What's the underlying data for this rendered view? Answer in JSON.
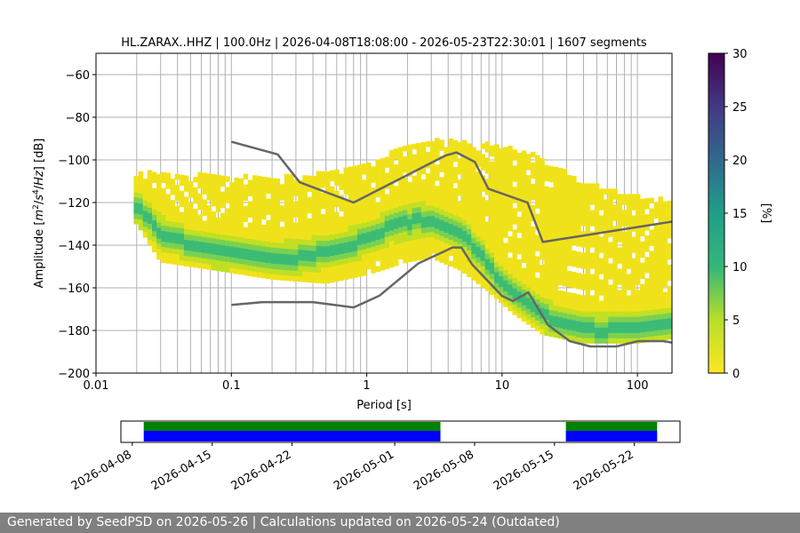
{
  "colors": {
    "psd_low": "#f0e21a",
    "reference_curves": "#666666",
    "data_bar": "#0000ff",
    "gap_bar": "#008000"
  },
  "chart_data": [
    {
      "type": "heatmap",
      "title": "HL.ZARAX..HHZ | 100.0Hz | 2026-04-08T18:08:00 - 2026-05-23T22:30:01 | 1607 segments",
      "xlabel": "Period [s]",
      "ylabel_parts": [
        "Amplitude [",
        "m",
        "2",
        "/",
        "s",
        "4",
        "/",
        "Hz",
        "] [dB]"
      ],
      "x_scale": "log",
      "xlim": [
        0.01,
        180
      ],
      "ylim": [
        -200,
        -50
      ],
      "x_ticks": [
        0.01,
        0.1,
        1,
        10,
        100
      ],
      "x_tick_labels": [
        "0.01",
        "0.1",
        "1",
        "10",
        "100"
      ],
      "y_ticks": [
        -200,
        -180,
        -160,
        -140,
        -120,
        -100,
        -80,
        -60
      ],
      "y_tick_labels": [
        "−200",
        "−180",
        "−160",
        "−140",
        "−120",
        "−100",
        "−80",
        "−60"
      ],
      "grid": true,
      "colorbar": {
        "label": "[%]",
        "range": [
          0,
          30
        ],
        "ticks": [
          0,
          5,
          10,
          15,
          20,
          25,
          30
        ],
        "tick_labels": [
          "0",
          "5",
          "10",
          "15",
          "20",
          "25",
          "30"
        ],
        "colormap": "viridis"
      },
      "psd_mode_curve": {
        "period": [
          0.02,
          0.03,
          0.05,
          0.08,
          0.15,
          0.3,
          0.6,
          1.0,
          1.5,
          2.5,
          3.5,
          5.0,
          7.0,
          10,
          15,
          25,
          50,
          100,
          180
        ],
        "db": [
          -122,
          -134,
          -140,
          -143,
          -145,
          -146,
          -142,
          -137,
          -131,
          -128,
          -130,
          -134,
          -145,
          -158,
          -167,
          -176,
          -180,
          -179,
          -176
        ]
      },
      "psd_upper_envelope": {
        "period": [
          0.02,
          0.03,
          0.08,
          0.2,
          0.5,
          1.0,
          2.0,
          3.0,
          5.0,
          8.0,
          12,
          20,
          40,
          100,
          180
        ],
        "db": [
          -106,
          -108,
          -108,
          -110,
          -106,
          -102,
          -95,
          -92,
          -92,
          -94,
          -96,
          -100,
          -112,
          -118,
          -120
        ]
      },
      "psd_lower_envelope": {
        "period": [
          0.02,
          0.03,
          0.08,
          0.2,
          0.5,
          1.0,
          2.0,
          3.0,
          5.0,
          8.0,
          12,
          20,
          40,
          100,
          180
        ],
        "db": [
          -130,
          -148,
          -152,
          -156,
          -158,
          -154,
          -148,
          -146,
          -152,
          -162,
          -172,
          -182,
          -186,
          -186,
          -184
        ]
      },
      "upper_noise_model": {
        "name": "",
        "period": [
          0.1,
          0.22,
          0.32,
          0.8,
          3.8,
          4.6,
          6.3,
          7.9,
          15.4,
          20,
          354.8
        ],
        "db": [
          -91.5,
          -97.4,
          -110.5,
          -120.0,
          -98.0,
          -96.5,
          -101.0,
          -113.5,
          -120.0,
          -138.5,
          -126.0
        ]
      },
      "lower_noise_model": {
        "name": "",
        "period": [
          0.1,
          0.17,
          0.4,
          0.8,
          1.24,
          2.4,
          4.3,
          5.0,
          6.0,
          10.0,
          12.0,
          15.6,
          21.9,
          31.6,
          45.0,
          70.0,
          101.0,
          154.0,
          180
        ],
        "db": [
          -168.0,
          -166.7,
          -166.7,
          -169.2,
          -163.7,
          -148.6,
          -141.1,
          -141.1,
          -149.0,
          -163.8,
          -166.2,
          -162.1,
          -177.5,
          -185.0,
          -187.5,
          -187.5,
          -185.0,
          -185.0,
          -185.7
        ]
      }
    },
    {
      "type": "bar",
      "title": "",
      "x_axis": "date",
      "xlim": [
        "2026-04-07",
        "2026-05-26"
      ],
      "x_ticks": [
        "2026-04-08",
        "2026-04-15",
        "2026-04-22",
        "2026-05-01",
        "2026-05-08",
        "2026-05-15",
        "2026-05-22"
      ],
      "x_tick_labels": [
        "2026-04-08",
        "2026-04-15",
        "2026-04-22",
        "2026-05-01",
        "2026-05-08",
        "2026-05-15",
        "2026-05-22"
      ],
      "data_periods": [
        {
          "start": "2026-04-09",
          "end": "2026-05-05"
        },
        {
          "start": "2026-05-16",
          "end": "2026-05-24"
        }
      ]
    }
  ],
  "footer": {
    "text": "Generated by SeedPSD on 2026-05-26 | Calculations updated on 2026-05-24 (Outdated)"
  }
}
